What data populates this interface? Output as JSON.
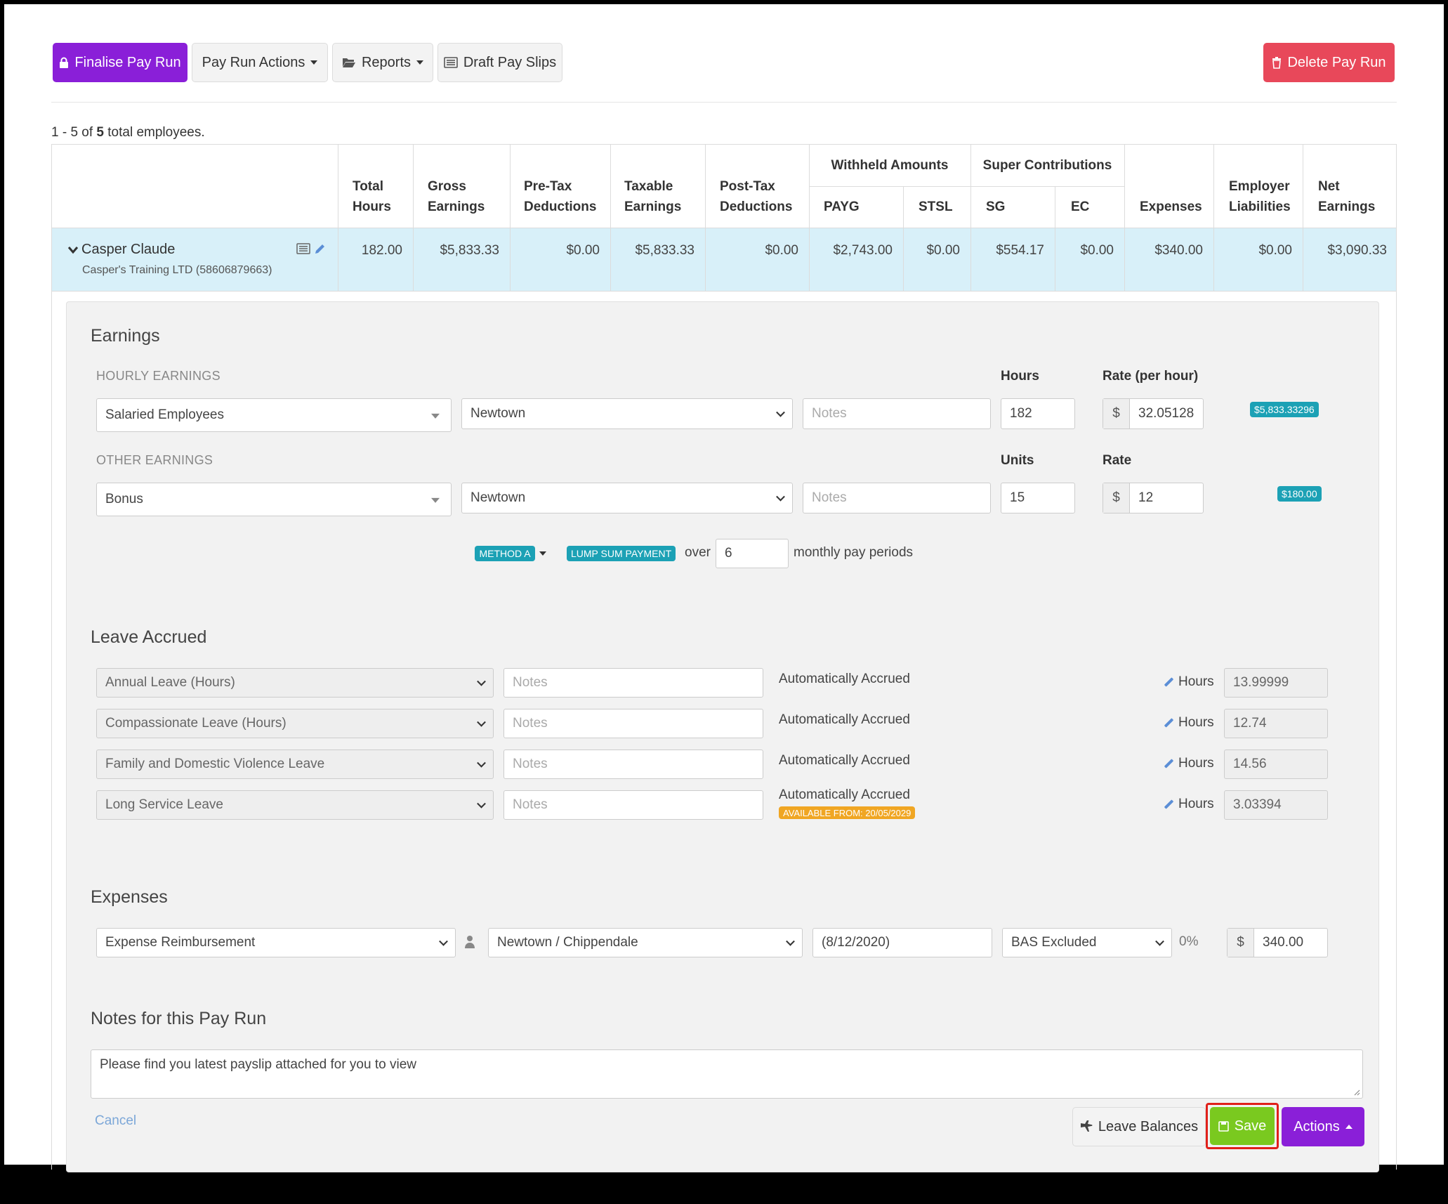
{
  "toolbar": {
    "finalise_label": "Finalise Pay Run",
    "actions_label": "Pay Run Actions",
    "reports_label": "Reports",
    "draft_label": "Draft Pay Slips",
    "delete_label": "Delete Pay Run"
  },
  "summary": {
    "prefix": "1 - 5 of ",
    "count": "5",
    "suffix": " total employees."
  },
  "table": {
    "group_headers": {
      "withheld": "Withheld Amounts",
      "super": "Super Contributions"
    },
    "headers": {
      "total_hours_1": "Total",
      "total_hours_2": "Hours",
      "gross_1": "Gross",
      "gross_2": "Earnings",
      "pretax_1": "Pre-Tax",
      "pretax_2": "Deductions",
      "taxable_1": "Taxable",
      "taxable_2": "Earnings",
      "posttax_1": "Post-Tax",
      "posttax_2": "Deductions",
      "payg": "PAYG",
      "stsl": "STSL",
      "sg": "SG",
      "ec": "EC",
      "expenses": "Expenses",
      "employer_1": "Employer",
      "employer_2": "Liabilities",
      "net_1": "Net",
      "net_2": "Earnings"
    },
    "row": {
      "name": "Casper Claude",
      "company": "Casper's Training LTD (58606879663)",
      "total_hours": "182.00",
      "gross": "$5,833.33",
      "pretax": "$0.00",
      "taxable": "$5,833.33",
      "posttax": "$0.00",
      "payg": "$2,743.00",
      "stsl": "$0.00",
      "sg": "$554.17",
      "ec": "$0.00",
      "expenses": "$340.00",
      "employer": "$0.00",
      "net": "$3,090.33"
    }
  },
  "earnings": {
    "title": "Earnings",
    "hourly": {
      "section": "HOURLY EARNINGS",
      "hours_label": "Hours",
      "rate_label": "Rate (per hour)",
      "category": "Salaried Employees",
      "location": "Newtown",
      "notes_placeholder": "Notes",
      "hours": "182",
      "currency": "$",
      "rate": "32.05128",
      "total": "$5,833.33296"
    },
    "other": {
      "section": "OTHER EARNINGS",
      "units_label": "Units",
      "rate_label": "Rate",
      "category": "Bonus",
      "location": "Newtown",
      "notes_placeholder": "Notes",
      "units": "15",
      "currency": "$",
      "rate": "12",
      "total": "$180.00"
    },
    "method": {
      "method_label": "METHOD A",
      "lump_label": "LUMP SUM PAYMENT",
      "over_text": "over",
      "periods": "6",
      "periods_text": "monthly pay periods"
    }
  },
  "leave": {
    "title": "Leave Accrued",
    "items": [
      {
        "type": "Annual Leave (Hours)",
        "notes_placeholder": "Notes",
        "status": "Automatically Accrued",
        "hours_label": "Hours",
        "hours": "13.99999"
      },
      {
        "type": "Compassionate Leave (Hours)",
        "notes_placeholder": "Notes",
        "status": "Automatically Accrued",
        "hours_label": "Hours",
        "hours": "12.74"
      },
      {
        "type": "Family and Domestic Violence Leave",
        "notes_placeholder": "Notes",
        "status": "Automatically Accrued",
        "hours_label": "Hours",
        "hours": "14.56"
      },
      {
        "type": "Long Service Leave",
        "notes_placeholder": "Notes",
        "status": "Automatically Accrued",
        "hours_label": "Hours",
        "hours": "3.03394",
        "badge": "AVAILABLE FROM: 20/05/2029"
      }
    ]
  },
  "expenses": {
    "title": "Expenses",
    "category": "Expense Reimbursement",
    "location": "Newtown / Chippendale",
    "date": "(8/12/2020)",
    "tax": "BAS Excluded",
    "tax_rate": "0%",
    "currency": "$",
    "amount": "340.00"
  },
  "notes": {
    "title": "Notes for this Pay Run",
    "value": "Please find you latest payslip attached for you to view"
  },
  "footer": {
    "cancel_label": "Cancel",
    "leave_balances_label": "Leave Balances",
    "save_label": "Save",
    "actions_label": "Actions"
  },
  "colors": {
    "primary_purple": "#8a1fd8",
    "delete_red": "#e8485a",
    "save_green": "#7ac91f",
    "highlight_border": "#e0201a",
    "row_highlight": "#d8f0f9",
    "badge_teal": "#1ca1b5",
    "badge_orange": "#f0a623"
  }
}
